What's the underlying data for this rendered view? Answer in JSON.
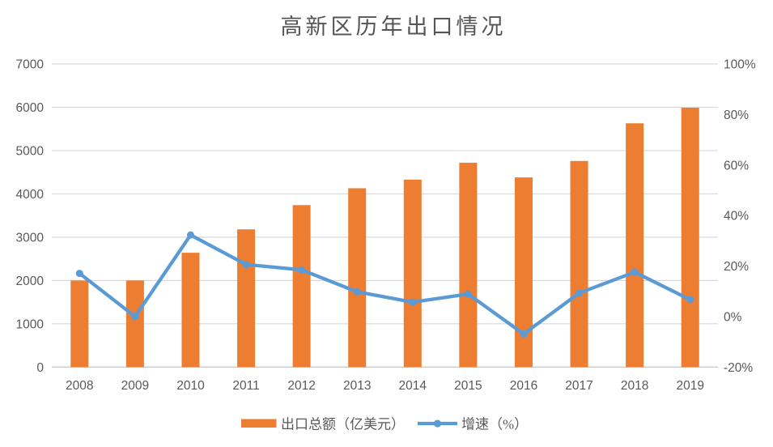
{
  "chart_data": {
    "type": "bar",
    "combo": "bar+line",
    "title": "高新区历年出口情况",
    "categories": [
      "2008",
      "2009",
      "2010",
      "2011",
      "2012",
      "2013",
      "2014",
      "2015",
      "2016",
      "2017",
      "2018",
      "2019"
    ],
    "series": [
      {
        "name": "出口总额（亿美元）",
        "type": "bar",
        "axis": "left",
        "color": "#ED7D31",
        "values": [
          2000,
          2000,
          2640,
          3180,
          3740,
          4130,
          4330,
          4720,
          4380,
          4760,
          5630,
          5990
        ]
      },
      {
        "name": "增速（%）",
        "type": "line",
        "axis": "right",
        "color": "#5B9BD5",
        "values": [
          17.1,
          0,
          32.3,
          20.6,
          18.5,
          9.8,
          5.7,
          8.9,
          -6.9,
          9.3,
          17.6,
          6.7
        ]
      }
    ],
    "left_axis": {
      "min": 0,
      "max": 7000,
      "step": 1000,
      "ticks": [
        "0",
        "1000",
        "2000",
        "3000",
        "4000",
        "5000",
        "6000",
        "7000"
      ]
    },
    "right_axis": {
      "min": -20,
      "max": 100,
      "step": 20,
      "ticks": [
        "-20%",
        "0%",
        "20%",
        "40%",
        "60%",
        "80%",
        "100%"
      ]
    },
    "grid": true,
    "legend_position": "bottom"
  },
  "colors": {
    "bar": "#ED7D31",
    "line": "#5B9BD5",
    "gridline": "#D9D9D9",
    "axis_line": "#C9C9C9",
    "text": "#595959",
    "title": "#555555",
    "background": "#FFFFFF"
  }
}
